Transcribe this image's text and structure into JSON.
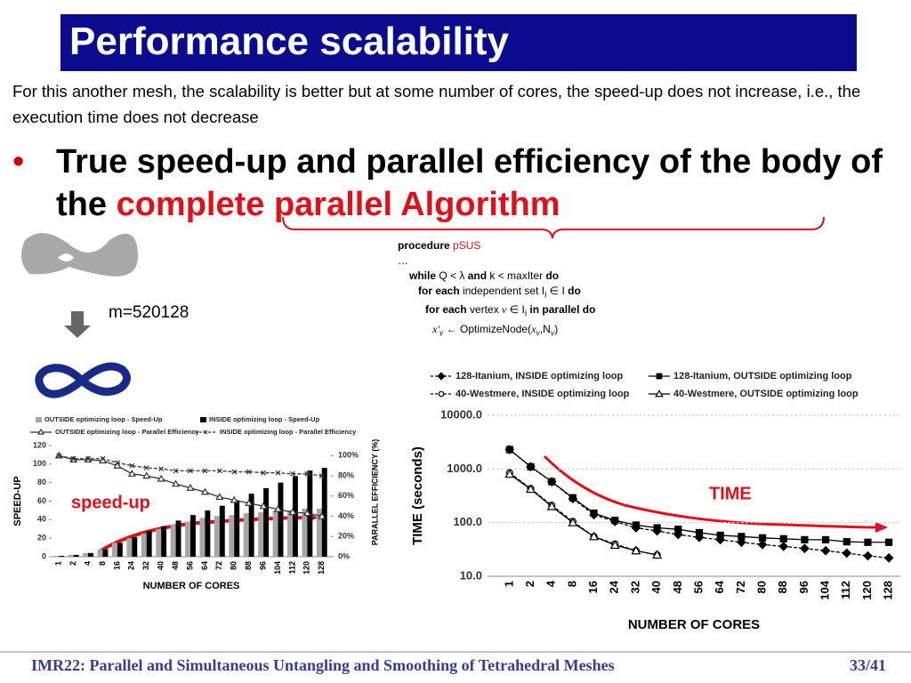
{
  "header": {
    "title": "Performance scalability"
  },
  "intro": "For this another mesh, the scalability is better but at some number of cores, the speed-up does not increase, i.e., the execution time does not decrease",
  "bullet": {
    "text": "True speed-up and parallel efficiency of the body of the",
    "highlight": "complete parallel Algorithm"
  },
  "mesh_label": "m=520128",
  "procedure": [
    [
      "procedure ",
      "pSUS"
    ],
    [
      "…"
    ],
    [
      "while",
      " Q < λ ",
      "and",
      " k < maxIter ",
      "do"
    ],
    [
      "for each",
      " independent set I",
      "i",
      " ∈ I ",
      "do"
    ],
    [
      "for each",
      " vertex ",
      "v",
      " ∈ I",
      "i",
      " in parallel do"
    ],
    [
      "x'",
      "v",
      " ← OptimizeNode(",
      "x",
      "v",
      ",N",
      "v",
      ")"
    ]
  ],
  "annotations": {
    "speedup": "speed-up",
    "time": "TIME"
  },
  "footer": {
    "text": "IMR22: Parallel and Simultaneous Untangling and Smoothing of Tetrahedral Meshes",
    "page": "33/41"
  },
  "chart_data": [
    {
      "type": "bar",
      "x_label": "NUMBER OF CORES",
      "y_label": "SPEED-UP",
      "y2_label": "PARALLEL EFFICIENCY (%)",
      "categories": [
        "1",
        "2",
        "4",
        "8",
        "16",
        "24",
        "32",
        "40",
        "48",
        "56",
        "64",
        "72",
        "80",
        "88",
        "96",
        "104",
        "112",
        "120",
        "128"
      ],
      "ylim": [
        0,
        120
      ],
      "yticks": [
        0,
        20,
        40,
        60,
        80,
        100,
        120
      ],
      "y2lim": [
        0,
        110
      ],
      "y2ticks": [
        {
          "value": 0,
          "label": "0%"
        },
        {
          "value": 20,
          "label": "20%"
        },
        {
          "value": 40,
          "label": "40%"
        },
        {
          "value": 60,
          "label": "60%"
        },
        {
          "value": 80,
          "label": "80%"
        },
        {
          "value": 100,
          "label": "100%"
        }
      ],
      "series": [
        {
          "name": "OUTSIDE optimizing loop - Speed-Up",
          "type": "bar",
          "color": "#a6a6a6",
          "values": [
            1,
            2,
            4,
            8,
            15,
            20,
            25,
            30,
            35,
            38,
            42,
            44,
            45,
            47,
            48,
            50,
            50,
            52,
            52
          ]
        },
        {
          "name": "INSIDE optimizing loop - Speed-Up",
          "type": "bar",
          "color": "#000000",
          "values": [
            1,
            2,
            4,
            8,
            15,
            21,
            28,
            33,
            39,
            45,
            50,
            55,
            61,
            68,
            74,
            80,
            87,
            93,
            96
          ]
        },
        {
          "name": "OUTSIDE optimizing loop - Parallel Efficiency",
          "type": "line",
          "axis": "y2",
          "color": "#333333",
          "dash": false,
          "marker": "triangle",
          "values": [
            100,
            96,
            96,
            95,
            90,
            82,
            80,
            77,
            72,
            68,
            64,
            59,
            56,
            53,
            50,
            47,
            44,
            43,
            40
          ]
        },
        {
          "name": "INSIDE optimizing loop - Parallel Efficiency",
          "type": "line",
          "axis": "y2",
          "color": "#333333",
          "dash": true,
          "marker": "x",
          "values": [
            100,
            97,
            97,
            97,
            93,
            90,
            88,
            87,
            85,
            85,
            85,
            85,
            84,
            84,
            83,
            83,
            82,
            82,
            80
          ]
        }
      ]
    },
    {
      "type": "line",
      "x_label": "NUMBER OF CORES",
      "y_label": "TIME (seconds)",
      "log_scale": true,
      "grid": true,
      "categories": [
        "1",
        "2",
        "4",
        "8",
        "16",
        "24",
        "32",
        "40",
        "48",
        "56",
        "64",
        "72",
        "80",
        "88",
        "96",
        "104",
        "112",
        "120",
        "128"
      ],
      "ylim": [
        10,
        10000
      ],
      "yticks": [
        {
          "value": 10,
          "label": "10.0"
        },
        {
          "value": 100,
          "label": "100.0"
        },
        {
          "value": 1000,
          "label": "1000.0"
        },
        {
          "value": 10000,
          "label": "10000.0"
        }
      ],
      "series": [
        {
          "name": "128-Itanium, INSIDE optimizing loop",
          "color": "#000000",
          "dash": true,
          "marker": "diamond",
          "values": [
            2300,
            1100,
            580,
            280,
            140,
            105,
            80,
            70,
            60,
            53,
            48,
            43,
            39,
            36,
            33,
            30,
            27,
            24,
            22
          ]
        },
        {
          "name": "128-Itanium, OUTSIDE optimizing loop",
          "color": "#000000",
          "dash": false,
          "marker": "square",
          "values": [
            2300,
            1100,
            580,
            290,
            150,
            110,
            90,
            80,
            75,
            65,
            58,
            55,
            52,
            50,
            48,
            48,
            44,
            43,
            43
          ]
        },
        {
          "name": "40-Westmere, INSIDE optimizing loop",
          "color": "#000000",
          "dash": true,
          "marker": "circle",
          "values": [
            850,
            430,
            210,
            105,
            55,
            40,
            30,
            25,
            null,
            null,
            null,
            null,
            null,
            null,
            null,
            null,
            null,
            null,
            null
          ]
        },
        {
          "name": "40-Westmere, OUTSIDE optimizing loop",
          "color": "#000000",
          "dash": false,
          "marker": "triangle",
          "values": [
            800,
            420,
            200,
            100,
            55,
            38,
            30,
            25,
            null,
            null,
            null,
            null,
            null,
            null,
            null,
            null,
            null,
            null,
            null
          ]
        }
      ]
    }
  ]
}
